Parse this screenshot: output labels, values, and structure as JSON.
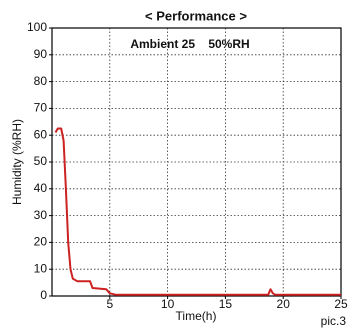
{
  "chart_data": {
    "type": "line",
    "title": "< Performance >",
    "annotation": "Ambient 25    50%RH",
    "xlabel": "Time(h)",
    "ylabel": "Humidity (%RH)",
    "caption": "pic.3",
    "x": [
      0.3,
      0.5,
      0.8,
      1.0,
      1.2,
      1.4,
      1.6,
      1.8,
      2.2,
      3.3,
      3.5,
      4.7,
      5.0,
      5.5,
      18.7,
      18.9,
      19.1,
      19.3,
      25
    ],
    "series": [
      {
        "name": "Humidity",
        "color": "#cc2222",
        "values": [
          61,
          62.5,
          62.5,
          58,
          40,
          20,
          10,
          6.5,
          5.5,
          5.5,
          3,
          2.5,
          1,
          0.5,
          0.5,
          2.5,
          1,
          0.5,
          0.5
        ]
      }
    ],
    "xlim": [
      0,
      25
    ],
    "xticks": [
      5,
      10,
      15,
      20,
      25
    ],
    "ylim": [
      0,
      100
    ],
    "yticks": [
      0,
      10,
      20,
      30,
      40,
      50,
      60,
      70,
      80,
      90,
      100
    ],
    "grid": true
  }
}
